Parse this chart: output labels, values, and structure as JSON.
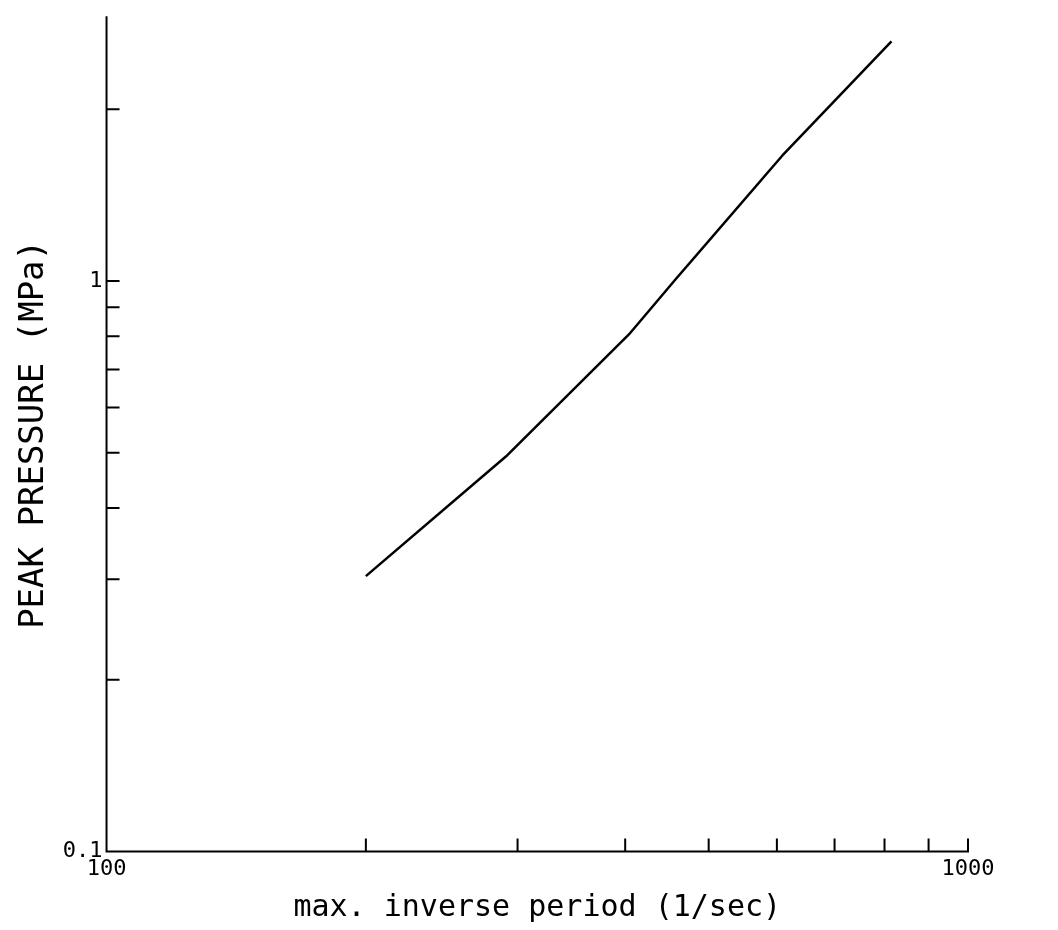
{
  "chart_data": {
    "type": "line",
    "xlabel": "max. inverse period (1/sec)",
    "ylabel": "PEAK PRESSURE (MPa)",
    "log": "xy",
    "grid": false,
    "legend": false,
    "marker": "none",
    "line_style": "solid",
    "xlim": [
      100,
      1000
    ],
    "ylim": [
      0.1,
      2.9
    ],
    "xticks": [
      100,
      {
        "value": 200,
        "label": null
      },
      {
        "value": 300,
        "label": null
      },
      {
        "value": 400,
        "label": null
      },
      {
        "value": 500,
        "label": null
      },
      {
        "value": 600,
        "label": null
      },
      {
        "value": 700,
        "label": null
      },
      {
        "value": 800,
        "label": null
      },
      {
        "value": 900,
        "label": null
      },
      1000
    ],
    "yticks": [
      0.1,
      {
        "value": 0.2,
        "label": null
      },
      {
        "value": 0.3,
        "label": null
      },
      {
        "value": 0.4,
        "label": null
      },
      {
        "value": 0.5,
        "label": null
      },
      {
        "value": 0.6,
        "label": null
      },
      {
        "value": 0.7,
        "label": null
      },
      {
        "value": 0.8,
        "label": null
      },
      {
        "value": 0.9,
        "label": null
      },
      1,
      {
        "value": 2,
        "label": null
      }
    ],
    "series": [
      {
        "color": "#000000",
        "x": [
          200,
          291,
          404,
          458,
          609,
          815
        ],
        "values": [
          0.304,
          0.493,
          0.806,
          1.008,
          1.66,
          2.63
        ]
      }
    ]
  }
}
